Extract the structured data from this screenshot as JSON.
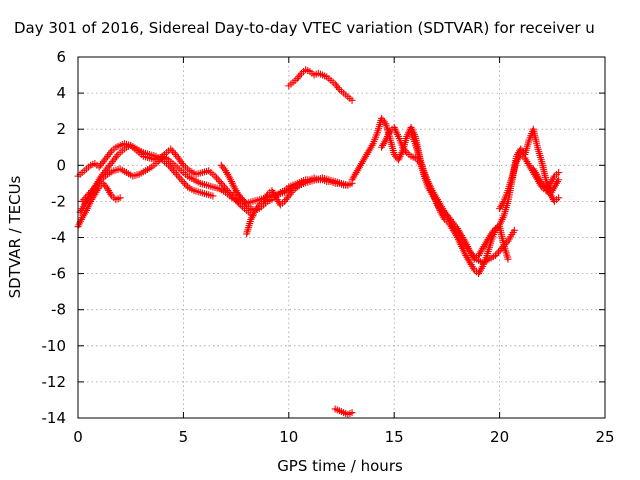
{
  "chart_data": {
    "type": "scatter",
    "title": "Day 301 of 2016, Sidereal Day-to-day VTEC variation (SDTVAR) for receiver u",
    "xlabel": "GPS time / hours",
    "ylabel": "SDTVAR / TECUs",
    "xlim": [
      0,
      25
    ],
    "ylim": [
      -14,
      6
    ],
    "xticks": [
      "0",
      "5",
      "10",
      "15",
      "20",
      "25"
    ],
    "yticks": [
      "6",
      "4",
      "2",
      "0",
      "-2",
      "-4",
      "-6",
      "-8",
      "-10",
      "-12",
      "-14"
    ],
    "grid": true,
    "marker": "plus",
    "color": "#ff0000",
    "series": [
      {
        "x": [
          0.0,
          0.2,
          0.4,
          0.6,
          0.8,
          1.0,
          1.2,
          1.4,
          1.6,
          1.8,
          2.0,
          2.2,
          2.5,
          2.8,
          3.1,
          3.4,
          3.7,
          4.0,
          4.3,
          4.6,
          4.9,
          5.2,
          5.5,
          5.8,
          6.1,
          6.4
        ],
        "y": [
          -0.6,
          -0.4,
          -0.2,
          0.0,
          0.1,
          -0.1,
          0.2,
          0.5,
          0.8,
          1.0,
          1.1,
          1.2,
          1.1,
          0.9,
          0.7,
          0.6,
          0.5,
          0.3,
          0.0,
          -0.4,
          -0.8,
          -1.2,
          -1.4,
          -1.5,
          -1.6,
          -1.7
        ]
      },
      {
        "x": [
          0.0,
          0.2,
          0.4,
          0.6,
          0.8,
          1.0,
          1.2,
          1.4,
          1.6,
          1.8,
          2.0
        ],
        "y": [
          -3.4,
          -2.9,
          -2.5,
          -2.0,
          -1.6,
          -1.2,
          -1.0,
          -1.3,
          -1.7,
          -1.9,
          -1.8
        ]
      },
      {
        "x": [
          0.1,
          0.3,
          0.5,
          0.7,
          0.9,
          1.1,
          1.3,
          1.5,
          1.7,
          1.9,
          2.1,
          2.3,
          2.5,
          2.7,
          2.9,
          3.1,
          3.4,
          3.7,
          4.0,
          4.3,
          4.6,
          4.9,
          5.2,
          5.5,
          5.8,
          6.1,
          6.4,
          6.7,
          7.0,
          7.3,
          7.6,
          7.9
        ],
        "y": [
          -2.6,
          -2.2,
          -1.8,
          -1.4,
          -1.0,
          -0.6,
          -0.3,
          0.0,
          0.3,
          0.6,
          0.8,
          1.0,
          1.1,
          0.9,
          0.7,
          0.5,
          0.4,
          0.3,
          0.5,
          0.3,
          0.0,
          -0.3,
          -0.6,
          -0.8,
          -1.0,
          -1.1,
          -1.2,
          -1.3,
          -1.5,
          -1.8,
          -2.0,
          -2.3
        ]
      },
      {
        "x": [
          0.2,
          0.5,
          0.8,
          1.1,
          1.4,
          1.7,
          2.0,
          2.3,
          2.6,
          2.9,
          3.2,
          3.5,
          3.8,
          4.1,
          4.4,
          4.7,
          5.0,
          5.3,
          5.6,
          5.9,
          6.2,
          6.5,
          6.8,
          7.1,
          7.4,
          7.7,
          8.0,
          8.3
        ],
        "y": [
          -2.0,
          -1.6,
          -1.2,
          -0.8,
          -0.5,
          -0.3,
          -0.2,
          -0.4,
          -0.6,
          -0.5,
          -0.3,
          -0.1,
          0.2,
          0.6,
          0.9,
          0.5,
          0.0,
          -0.3,
          -0.5,
          -0.4,
          -0.3,
          -0.6,
          -1.0,
          -1.4,
          -1.8,
          -2.2,
          -2.5,
          -2.8
        ]
      },
      {
        "x": [
          6.8,
          7.0,
          7.2,
          7.4,
          7.6,
          7.8,
          8.0,
          8.2,
          8.4,
          8.6,
          8.8,
          9.0,
          9.2,
          9.4,
          9.6,
          9.8,
          10.0,
          10.2,
          10.4,
          10.6,
          10.8,
          11.0,
          11.2,
          11.4,
          11.6,
          11.8,
          12.0,
          12.2,
          12.4,
          12.6,
          12.8,
          13.0
        ],
        "y": [
          0.0,
          -0.3,
          -0.7,
          -1.2,
          -1.6,
          -1.9,
          -2.2,
          -2.4,
          -2.5,
          -2.4,
          -2.2,
          -2.0,
          -1.9,
          -1.7,
          -1.5,
          -1.4,
          -1.2,
          -1.1,
          -1.0,
          -0.9,
          -0.8,
          -0.8,
          -0.7,
          -0.8,
          -0.8,
          -0.9,
          -0.9,
          -1.0,
          -1.0,
          -1.1,
          -1.1,
          -1.0
        ]
      },
      {
        "x": [
          7.4,
          7.7,
          8.0,
          8.3,
          8.6,
          8.9,
          9.2,
          9.5,
          9.8,
          10.1,
          10.4,
          10.7,
          11.0,
          11.3,
          11.6,
          11.9,
          12.2,
          12.5,
          12.8
        ],
        "y": [
          -1.5,
          -1.8,
          -2.1,
          -2.0,
          -1.9,
          -1.8,
          -1.7,
          -1.6,
          -1.5,
          -1.3,
          -1.2,
          -1.0,
          -0.9,
          -0.8,
          -0.7,
          -0.8,
          -0.9,
          -1.0,
          -1.1
        ]
      },
      {
        "x": [
          8.0,
          8.2,
          8.4,
          8.6,
          8.8,
          9.0,
          9.2,
          9.4,
          9.6,
          9.8,
          10.0,
          10.2,
          10.4
        ],
        "y": [
          -3.8,
          -3.0,
          -2.5,
          -2.2,
          -2.0,
          -1.6,
          -1.4,
          -1.8,
          -2.2,
          -2.0,
          -1.7,
          -1.4,
          -1.2
        ]
      },
      {
        "x": [
          10.0,
          10.2,
          10.4,
          10.6,
          10.8,
          11.0,
          11.2,
          11.4,
          11.6,
          11.8,
          12.0,
          12.2,
          12.4,
          12.6,
          12.8,
          13.0
        ],
        "y": [
          4.4,
          4.6,
          4.8,
          5.1,
          5.3,
          5.2,
          5.0,
          5.1,
          5.0,
          4.9,
          4.7,
          4.5,
          4.2,
          4.0,
          3.8,
          3.6
        ]
      },
      {
        "x": [
          12.2,
          12.4,
          12.6,
          12.8,
          13.0
        ],
        "y": [
          -13.5,
          -13.6,
          -13.7,
          -13.8,
          -13.7
        ]
      },
      {
        "x": [
          13.0,
          13.2,
          13.4,
          13.6,
          13.8,
          14.0,
          14.2,
          14.4,
          14.6,
          14.8,
          15.0,
          15.2,
          15.4,
          15.6,
          15.8,
          16.0,
          16.2,
          16.4,
          16.6,
          16.8,
          17.0,
          17.2,
          17.4,
          17.6,
          17.8,
          18.0,
          18.2,
          18.4,
          18.6,
          18.8,
          19.0,
          19.2,
          19.4,
          19.6,
          19.8,
          20.0,
          20.2,
          20.4,
          20.6,
          20.8,
          21.0,
          21.2,
          21.4,
          21.6,
          21.8,
          22.0,
          22.2,
          22.4,
          22.6,
          22.8
        ],
        "y": [
          -0.8,
          -0.4,
          0.0,
          0.4,
          0.8,
          1.2,
          1.8,
          2.6,
          2.3,
          1.5,
          0.6,
          0.3,
          0.8,
          1.6,
          2.1,
          1.6,
          0.5,
          -0.5,
          -1.2,
          -1.6,
          -2.0,
          -2.6,
          -3.0,
          -3.2,
          -3.6,
          -4.0,
          -4.5,
          -5.0,
          -5.4,
          -5.8,
          -6.0,
          -5.6,
          -5.0,
          -4.2,
          -3.6,
          -3.3,
          -2.8,
          -2.0,
          -0.8,
          0.5,
          0.9,
          0.6,
          1.4,
          2.0,
          1.0,
          0.2,
          -0.8,
          -1.6,
          -2.0,
          -1.8
        ]
      },
      {
        "x": [
          14.4,
          14.6,
          14.8,
          15.0,
          15.2,
          15.4,
          15.6,
          15.8,
          16.0,
          16.2,
          16.4,
          16.6,
          16.8,
          17.0,
          17.2,
          17.4,
          17.6,
          17.8,
          18.0,
          18.3,
          18.6,
          18.9,
          19.2,
          19.5,
          19.8,
          20.1,
          20.4,
          20.7
        ],
        "y": [
          1.0,
          1.4,
          1.9,
          2.1,
          1.6,
          1.0,
          0.7,
          0.5,
          0.4,
          0.2,
          -0.4,
          -1.0,
          -1.5,
          -2.1,
          -2.5,
          -2.6,
          -3.0,
          -3.4,
          -3.8,
          -4.3,
          -4.8,
          -5.2,
          -5.4,
          -5.2,
          -5.0,
          -4.6,
          -4.2,
          -3.6
        ]
      },
      {
        "x": [
          15.8,
          16.0,
          16.2,
          16.4,
          16.6,
          16.8,
          17.0,
          17.2,
          17.4,
          17.6,
          17.8,
          18.0,
          18.2,
          18.4,
          18.6,
          18.8,
          19.0,
          19.2,
          19.4,
          19.6,
          19.8,
          20.0,
          20.2,
          20.4
        ],
        "y": [
          1.8,
          1.2,
          0.4,
          -0.3,
          -0.9,
          -1.4,
          -1.8,
          -2.2,
          -2.6,
          -2.9,
          -3.2,
          -3.5,
          -3.9,
          -4.3,
          -4.8,
          -5.2,
          -5.0,
          -4.6,
          -4.2,
          -3.8,
          -3.5,
          -3.4,
          -4.4,
          -5.2
        ]
      },
      {
        "x": [
          20.0,
          20.2,
          20.4,
          20.6,
          20.8,
          21.0,
          21.2,
          21.4,
          21.6,
          21.8,
          22.0,
          22.2,
          22.4,
          22.6,
          22.8
        ],
        "y": [
          -2.4,
          -2.0,
          -1.4,
          -0.6,
          0.2,
          0.6,
          0.4,
          0.0,
          -0.4,
          -0.8,
          -1.2,
          -1.4,
          -1.0,
          -0.6,
          -0.4
        ]
      },
      {
        "x": [
          21.6,
          21.8,
          22.0,
          22.2,
          22.4,
          22.6,
          22.8
        ],
        "y": [
          -0.2,
          -0.6,
          -1.0,
          -1.3,
          -1.6,
          -1.2,
          -0.8
        ]
      }
    ]
  }
}
